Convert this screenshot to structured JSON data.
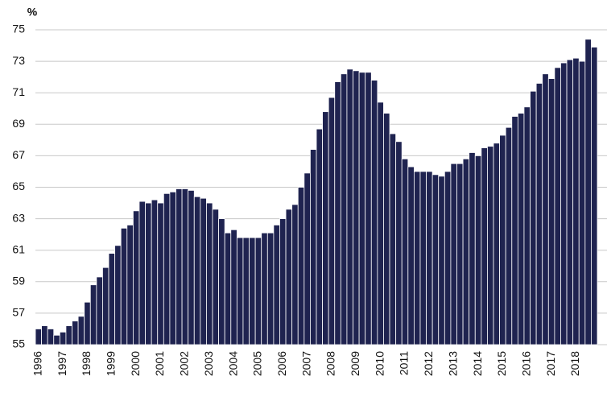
{
  "chart_data": {
    "type": "bar",
    "y_label": "%",
    "categories": [
      "1996",
      null,
      null,
      null,
      "1997",
      null,
      null,
      null,
      "1998",
      null,
      null,
      null,
      "1999",
      null,
      null,
      null,
      "2000",
      null,
      null,
      null,
      "2001",
      null,
      null,
      null,
      "2002",
      null,
      null,
      null,
      "2003",
      null,
      null,
      null,
      "2004",
      null,
      null,
      null,
      "2005",
      null,
      null,
      null,
      "2006",
      null,
      null,
      null,
      "2007",
      null,
      null,
      null,
      "2008",
      null,
      null,
      null,
      "2009",
      null,
      null,
      null,
      "2010",
      null,
      null,
      null,
      "2011",
      null,
      null,
      null,
      "2012",
      null,
      null,
      null,
      "2013",
      null,
      null,
      null,
      "2014",
      null,
      null,
      null,
      "2015",
      null,
      null,
      null,
      "2016",
      null,
      null,
      null,
      "2017",
      null,
      null,
      null,
      "2018",
      null,
      null,
      null
    ],
    "values": [
      56.0,
      56.2,
      56.0,
      55.6,
      55.8,
      56.2,
      56.5,
      56.8,
      57.7,
      58.8,
      59.3,
      59.9,
      60.8,
      61.3,
      62.4,
      62.6,
      63.5,
      64.1,
      64.0,
      64.2,
      64.0,
      64.6,
      64.7,
      64.9,
      64.9,
      64.8,
      64.4,
      64.3,
      64.0,
      63.6,
      63.0,
      62.1,
      62.3,
      61.8,
      61.8,
      61.8,
      61.8,
      62.1,
      62.1,
      62.6,
      63.0,
      63.6,
      63.9,
      65.0,
      65.9,
      67.4,
      68.7,
      69.8,
      70.7,
      71.7,
      72.2,
      72.5,
      72.4,
      72.3,
      72.3,
      71.8,
      70.4,
      69.7,
      68.4,
      67.9,
      66.8,
      66.3,
      66.0,
      66.0,
      66.0,
      65.8,
      65.7,
      66.0,
      66.5,
      66.5,
      66.8,
      67.2,
      67.0,
      67.5,
      67.6,
      67.8,
      68.3,
      68.8,
      69.5,
      69.7,
      70.1,
      71.1,
      71.6,
      72.2,
      71.9,
      72.6,
      72.9,
      73.1,
      73.2,
      73.0,
      74.4,
      73.9
    ],
    "color": "#1f2350",
    "ylim": [
      55,
      75
    ],
    "yticks": [
      55,
      57,
      59,
      61,
      63,
      65,
      67,
      69,
      71,
      73,
      75
    ],
    "grid": true
  }
}
